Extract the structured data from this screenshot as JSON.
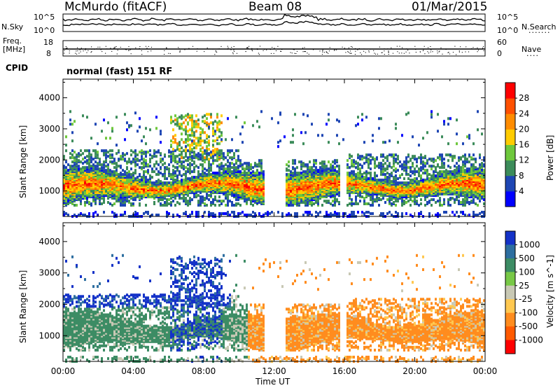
{
  "header": {
    "station": "McMurdo (fitACF)",
    "beam": "Beam 08",
    "date": "01/Mar/2015"
  },
  "noise_panel": {
    "left_label": "N.Sky",
    "right_label": "N.Search",
    "left_ticks": [
      "10^5",
      "10^0"
    ],
    "right_ticks": [
      "10^5",
      "10^0"
    ]
  },
  "freq_panel": {
    "left_label_line1": "Freq.",
    "left_label_line2": "[MHz]",
    "left_ticks": [
      "18",
      "8"
    ],
    "right_label": "Nave",
    "right_ticks": [
      "60",
      "0"
    ]
  },
  "cpid_label": "CPID",
  "mode_text": "normal (fast) 151 RF",
  "colors": {
    "power_scale": [
      "#0000ff",
      "#1e46b4",
      "#3c8c5a",
      "#6ec83c",
      "#ffcc00",
      "#ff8c00",
      "#ff5000",
      "#ff0000"
    ],
    "velocity_scale": [
      "#1432c8",
      "#2d6ea0",
      "#3c8c64",
      "#78c846",
      "#c8c8b4",
      "#ffc850",
      "#ff8c1e",
      "#ff5a00",
      "#ff0000"
    ]
  },
  "chart_data": [
    {
      "type": "heatmap",
      "name": "power",
      "ylabel": "Slant Range [km]",
      "xlabel": "",
      "x_ticks": [
        "00:00",
        "04:00",
        "08:00",
        "12:00",
        "16:00",
        "20:00",
        "00:00"
      ],
      "y_ticks": [
        1000,
        2000,
        3000,
        4000
      ],
      "ylim": [
        180,
        4600
      ],
      "colorbar_label": "Power [dB]",
      "colorbar_ticks": [
        4,
        8,
        12,
        16,
        20,
        24,
        28
      ],
      "colorbar_range": [
        0,
        32
      ]
    },
    {
      "type": "heatmap",
      "name": "velocity",
      "ylabel": "Slant Range [km]",
      "xlabel": "Time UT",
      "x_ticks": [
        "00:00",
        "04:00",
        "08:00",
        "12:00",
        "16:00",
        "20:00",
        "00:00"
      ],
      "y_ticks": [
        1000,
        2000,
        3000,
        4000
      ],
      "ylim": [
        180,
        4600
      ],
      "colorbar_label": "Velocity [m s^-1]",
      "colorbar_ticks": [
        "1000",
        "500",
        "100",
        "25",
        "-25",
        "-100",
        "-500",
        "-1000"
      ]
    }
  ]
}
